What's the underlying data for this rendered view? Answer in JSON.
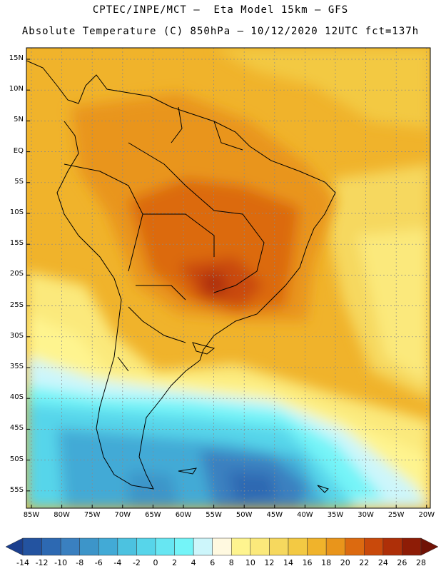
{
  "titles": {
    "line1": "CPTEC/INPE/MCT –  Eta Model 15km – GFS",
    "line2": "Absolute Temperature (C) 850hPa – 10/12/2020 12UTC fct=137h"
  },
  "map": {
    "lat_labels": [
      "15N",
      "10N",
      "5N",
      "EQ",
      "5S",
      "10S",
      "15S",
      "20S",
      "25S",
      "30S",
      "35S",
      "40S",
      "45S",
      "50S",
      "55S"
    ],
    "lon_labels": [
      "85W",
      "80W",
      "75W",
      "70W",
      "65W",
      "60W",
      "55W",
      "50W",
      "45W",
      "40W",
      "35W",
      "30W",
      "25W",
      "20W"
    ],
    "field": "Absolute Temperature",
    "units": "C",
    "level": "850hPa"
  },
  "colorbar": {
    "labels": [
      "-14",
      "-12",
      "-10",
      "-8",
      "-6",
      "-4",
      "-2",
      "0",
      "2",
      "4",
      "6",
      "8",
      "10",
      "12",
      "14",
      "16",
      "18",
      "20",
      "22",
      "24",
      "26",
      "28"
    ],
    "colors": [
      "#1b3f8e",
      "#2353a0",
      "#2d69b2",
      "#3a80c0",
      "#3d95c9",
      "#42aad6",
      "#4cc2e0",
      "#57d5ea",
      "#67e6f2",
      "#74f4f8",
      "#cdf6fb",
      "#fff9e0",
      "#fef48f",
      "#fbe97b",
      "#f6d85e",
      "#f3c943",
      "#f0b32b",
      "#e9951b",
      "#dc6a10",
      "#c9490b",
      "#ae2f08",
      "#8e1c06",
      "#701206"
    ]
  }
}
